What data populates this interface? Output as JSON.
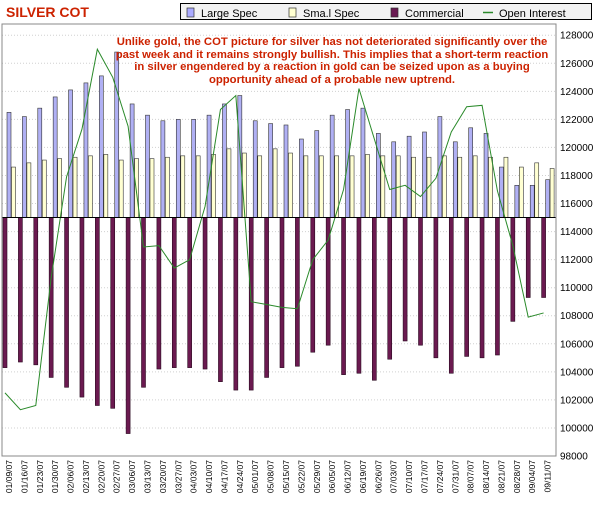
{
  "title": "SILVER COT",
  "annotation": "Unlike gold, the COT picture for silver has not deteriorated significantly over the past week and it remains strongly bullish. This implies that a short-term reaction in silver engendered by a reaction in gold can be seized upon as a buying opportunity ahead of a probable new uptrend.",
  "legend": [
    {
      "label": "Large Spec",
      "color": "#aaaaff"
    },
    {
      "label": "Sma.l Spec",
      "color": "#ffffd0"
    },
    {
      "label": "Commercial",
      "color": "#6a1a52"
    },
    {
      "label": "Open Interest",
      "color": "#2a8a2a"
    }
  ],
  "colors": {
    "large_spec": "#b0b0f4",
    "small_spec": "#ffffd2",
    "commercial": "#6b1a50",
    "open_interest": "#2a8a2a",
    "grid": "#d0d0d0"
  },
  "chart_data": {
    "type": "bar",
    "categories": [
      "01/09/07",
      "01/16/07",
      "01/23/07",
      "01/30/07",
      "02/06/07",
      "02/13/07",
      "02/20/07",
      "02/27/07",
      "03/06/07",
      "03/13/07",
      "03/20/07",
      "03/27/07",
      "04/03/07",
      "04/10/07",
      "04/17/07",
      "04/24/07",
      "05/01/07",
      "05/08/07",
      "05/15/07",
      "05/22/07",
      "05/29/07",
      "06/05/07",
      "06/12/07",
      "06/19/07",
      "06/26/07",
      "07/03/07",
      "07/10/07",
      "07/17/07",
      "07/24/07",
      "07/31/07",
      "08/07/07",
      "08/14/07",
      "08/21/07",
      "08/28/07",
      "09/04/07",
      "09/11/07"
    ],
    "tick_labels": [
      "01/09/07",
      "01/16/07",
      "01/23/07",
      "01/30/07",
      "02/06/07",
      "02/13/07",
      "02/20/07",
      "02/27/07",
      "03/06/07",
      "03/13/07",
      "03/20/07",
      "03/27/07",
      "04/03/07",
      "04/10/07",
      "04/17/07",
      "04/24/07",
      "05/01/07",
      "05/08/07",
      "05/15/07",
      "05/22/07",
      "05/29/07",
      "06/05/07",
      "06/12/07",
      "06/19/07",
      "06/26/07",
      "07/03/07",
      "07/10/07",
      "07/17/07",
      "07/24/07",
      "07/31/07",
      "08/07/07",
      "08/14/07",
      "08/21/07",
      "08/28/07",
      "09/04/07",
      "09/11/07"
    ],
    "y_axis_labels": [
      "98000",
      "100000",
      "102000",
      "104000",
      "106000",
      "108000",
      "110000",
      "112000",
      "114000",
      "116000",
      "118000",
      "120000",
      "122000",
      "124000",
      "126000",
      "128000"
    ],
    "ylim": [
      98000,
      128800
    ],
    "zero_line": 115000,
    "series": [
      {
        "name": "Large Spec",
        "type": "bar",
        "values": [
          122500,
          122200,
          122800,
          123600,
          124100,
          124600,
          125100,
          126800,
          123100,
          122300,
          121900,
          122000,
          122000,
          122300,
          123100,
          123700,
          121900,
          121700,
          121600,
          120600,
          121200,
          122300,
          122700,
          122800,
          121000,
          120400,
          120800,
          121100,
          122200,
          120400,
          121400,
          121000,
          118600,
          117300,
          117300,
          117700
        ]
      },
      {
        "name": "Sma.l Spec",
        "type": "bar",
        "values": [
          118600,
          118900,
          119100,
          119200,
          119300,
          119400,
          119500,
          119100,
          119200,
          119200,
          119300,
          119400,
          119400,
          119500,
          119900,
          119600,
          119400,
          119900,
          119600,
          119400,
          119400,
          119400,
          119400,
          119500,
          119400,
          119400,
          119300,
          119300,
          119400,
          119300,
          119400,
          119300,
          119300,
          118600,
          118900,
          118500
        ]
      },
      {
        "name": "Commercial",
        "type": "bar",
        "values": [
          104300,
          104700,
          104500,
          103600,
          102900,
          102200,
          101600,
          101400,
          99600,
          102900,
          104200,
          104300,
          104300,
          104200,
          103300,
          102700,
          102700,
          103600,
          104300,
          104400,
          105400,
          105900,
          103800,
          103900,
          103400,
          104900,
          106200,
          105900,
          105000,
          103900,
          105100,
          105000,
          105200,
          107600,
          109300,
          109300
        ]
      },
      {
        "name": "Open Interest",
        "type": "line",
        "values": [
          102500,
          101300,
          101600,
          110700,
          117900,
          121300,
          127000,
          125000,
          121500,
          112900,
          113000,
          111400,
          112000,
          115800,
          122700,
          123700,
          109000,
          108800,
          108600,
          108500,
          112000,
          113400,
          117000,
          124200,
          120600,
          117000,
          117300,
          116500,
          117800,
          121100,
          122900,
          123000,
          116900,
          113000,
          107900,
          108200
        ]
      }
    ]
  }
}
